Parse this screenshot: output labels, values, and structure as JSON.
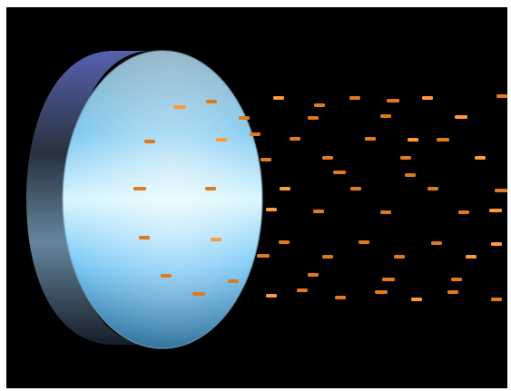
{
  "scene": {
    "subject": "lens",
    "particles": "orange-dashes",
    "colors": {
      "background": "#000000",
      "particle": "#e07a1f",
      "particle_bright": "#ff9a3a",
      "lens_face_light": "#cfefff",
      "lens_face_mid": "#6fc3f2",
      "lens_face_dark": "#2a5f86",
      "lens_rim_light": "#8aa9c3",
      "lens_rim_dark": "#1b2d3c"
    }
  }
}
